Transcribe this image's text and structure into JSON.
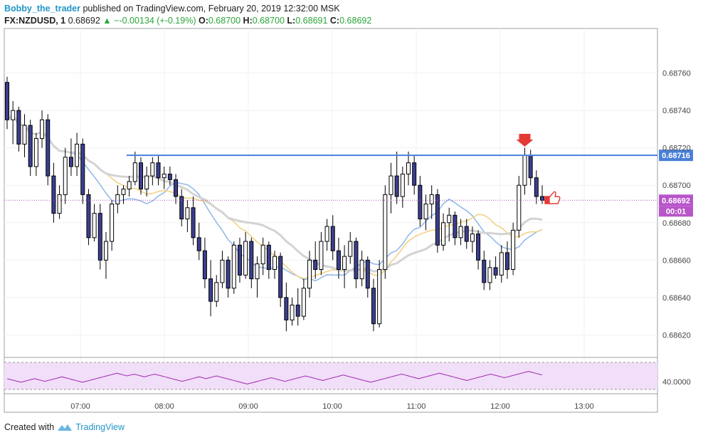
{
  "header": {
    "author": "Bobby_the_trader",
    "published_text": "published on TradingView.com, February 20, 2019 12:32:00 MSK",
    "symbol": "FX:NZDUSD, 1",
    "last_price": "0.68692",
    "change": "−-0.00134 (+-0.19%)",
    "open_label": "O:",
    "open": "0.68700",
    "high_label": "H:",
    "high": "0.68700",
    "low_label": "L:",
    "low": "0.68691",
    "close_label": "C:",
    "close": "0.68692"
  },
  "footer": {
    "created_with": "Created with",
    "brand": "TradingView"
  },
  "colors": {
    "candle_body": "#3b3f8f",
    "candle_outline": "#000000",
    "ma_fast": "#8fb7e8",
    "ma_mid": "#f3cf7d",
    "ma_slow": "#d3d3d3",
    "resistance": "#4a7fd8",
    "price_line": "#b04ac0",
    "osc_line": "#9c27b0",
    "osc_band": "#f1def8",
    "marker": "#e53935"
  },
  "chart_data": {
    "type": "candlestick",
    "y_axis_ticks": [
      "0.68760",
      "0.68740",
      "0.68720",
      "0.68700",
      "0.68680",
      "0.68660",
      "0.68640",
      "0.68620"
    ],
    "ylim": [
      0.68608,
      0.6878
    ],
    "x_axis_ticks": [
      "07:00",
      "08:00",
      "09:00",
      "10:00",
      "11:00",
      "12:00",
      "13:00"
    ],
    "resistance_level": 0.68716,
    "resistance_label": "0.68716",
    "current_price": 0.68692,
    "current_price_label": "0.68692",
    "countdown_label": "00:01",
    "oscillator": {
      "level_label": "40.0000",
      "values": [
        42,
        41,
        40,
        39,
        38,
        39,
        40,
        41,
        42,
        41,
        40,
        39,
        40,
        41,
        42,
        43,
        44,
        43,
        42,
        41,
        40,
        39,
        38,
        39,
        40,
        41,
        42,
        43,
        44,
        45,
        46,
        47,
        48,
        47,
        46,
        45,
        46,
        47,
        46,
        45,
        44,
        45,
        46,
        47,
        46,
        45,
        44,
        43,
        42,
        41,
        40,
        39,
        40,
        41,
        42,
        43,
        44,
        43,
        42,
        43,
        44,
        45,
        44,
        43,
        42,
        41,
        40,
        39,
        38,
        37,
        36,
        37,
        38,
        39,
        40,
        41,
        42,
        43,
        42,
        41,
        40,
        39,
        40,
        41,
        42,
        43,
        44,
        45,
        44,
        43,
        42,
        41,
        40,
        41,
        42,
        43,
        44,
        45,
        46,
        45,
        44,
        43,
        42,
        41,
        40,
        39,
        38,
        39,
        40,
        41,
        42,
        43,
        44,
        45,
        46,
        47,
        46,
        45,
        44,
        43,
        42,
        43,
        44,
        45,
        46,
        47,
        48,
        47,
        46,
        45,
        44,
        43,
        42,
        41,
        40,
        41,
        42,
        43,
        44,
        45,
        46,
        47,
        46,
        45,
        44,
        43,
        44,
        45,
        46,
        47,
        48,
        49,
        50,
        49,
        48,
        47,
        46
      ]
    },
    "candles": [
      [
        0.68755,
        0.68758,
        0.6873,
        0.68735
      ],
      [
        0.68735,
        0.68745,
        0.68722,
        0.6874
      ],
      [
        0.6874,
        0.68742,
        0.68718,
        0.68722
      ],
      [
        0.68722,
        0.68738,
        0.68715,
        0.68732
      ],
      [
        0.68732,
        0.68735,
        0.68705,
        0.6871
      ],
      [
        0.6871,
        0.68728,
        0.68705,
        0.68725
      ],
      [
        0.68725,
        0.6874,
        0.6872,
        0.68735
      ],
      [
        0.68735,
        0.68738,
        0.687,
        0.68705
      ],
      [
        0.68705,
        0.68712,
        0.6868,
        0.68685
      ],
      [
        0.68685,
        0.687,
        0.68682,
        0.68695
      ],
      [
        0.68695,
        0.6872,
        0.6869,
        0.68715
      ],
      [
        0.68715,
        0.68725,
        0.68705,
        0.6871
      ],
      [
        0.6871,
        0.68728,
        0.68705,
        0.68722
      ],
      [
        0.68722,
        0.68725,
        0.6869,
        0.68695
      ],
      [
        0.68695,
        0.68698,
        0.68668,
        0.68672
      ],
      [
        0.68672,
        0.6869,
        0.6867,
        0.68685
      ],
      [
        0.68685,
        0.6869,
        0.68655,
        0.6866
      ],
      [
        0.6866,
        0.68675,
        0.6865,
        0.6867
      ],
      [
        0.6867,
        0.68692,
        0.68665,
        0.6869
      ],
      [
        0.6869,
        0.687,
        0.68685,
        0.68695
      ],
      [
        0.68695,
        0.687,
        0.6869,
        0.68698
      ],
      [
        0.68698,
        0.68705,
        0.68694,
        0.68702
      ],
      [
        0.68702,
        0.68718,
        0.687,
        0.68712
      ],
      [
        0.68712,
        0.68715,
        0.68695,
        0.68698
      ],
      [
        0.68698,
        0.6871,
        0.68694,
        0.68705
      ],
      [
        0.68705,
        0.68715,
        0.687,
        0.68712
      ],
      [
        0.68712,
        0.68716,
        0.687,
        0.68704
      ],
      [
        0.68704,
        0.6871,
        0.68698,
        0.68706
      ],
      [
        0.68706,
        0.6871,
        0.687,
        0.68703
      ],
      [
        0.68703,
        0.68706,
        0.6869,
        0.68694
      ],
      [
        0.68694,
        0.68698,
        0.68678,
        0.68682
      ],
      [
        0.68682,
        0.68692,
        0.68675,
        0.68688
      ],
      [
        0.68688,
        0.68694,
        0.68668,
        0.68672
      ],
      [
        0.68672,
        0.6868,
        0.6866,
        0.68665
      ],
      [
        0.68665,
        0.68672,
        0.68645,
        0.6865
      ],
      [
        0.6865,
        0.6866,
        0.6863,
        0.68638
      ],
      [
        0.68638,
        0.68652,
        0.68635,
        0.68648
      ],
      [
        0.68648,
        0.68665,
        0.68645,
        0.6866
      ],
      [
        0.6866,
        0.68662,
        0.6864,
        0.68645
      ],
      [
        0.68645,
        0.6867,
        0.68642,
        0.68668
      ],
      [
        0.68668,
        0.68672,
        0.68648,
        0.68652
      ],
      [
        0.68652,
        0.68675,
        0.6865,
        0.6867
      ],
      [
        0.6867,
        0.68672,
        0.68645,
        0.6865
      ],
      [
        0.6865,
        0.68662,
        0.6864,
        0.68658
      ],
      [
        0.68658,
        0.68672,
        0.68652,
        0.68668
      ],
      [
        0.68668,
        0.6867,
        0.6865,
        0.68655
      ],
      [
        0.68655,
        0.68665,
        0.6865,
        0.68662
      ],
      [
        0.68662,
        0.68664,
        0.68635,
        0.6864
      ],
      [
        0.6864,
        0.68648,
        0.68622,
        0.68628
      ],
      [
        0.68628,
        0.6864,
        0.68625,
        0.68636
      ],
      [
        0.68636,
        0.68645,
        0.68625,
        0.6863
      ],
      [
        0.6863,
        0.6865,
        0.68628,
        0.68645
      ],
      [
        0.68645,
        0.68665,
        0.6864,
        0.6866
      ],
      [
        0.6866,
        0.6867,
        0.6865,
        0.68655
      ],
      [
        0.68655,
        0.68675,
        0.68652,
        0.6867
      ],
      [
        0.6867,
        0.68682,
        0.68665,
        0.68678
      ],
      [
        0.68678,
        0.68684,
        0.6866,
        0.68665
      ],
      [
        0.68665,
        0.68672,
        0.6865,
        0.68655
      ],
      [
        0.68655,
        0.68668,
        0.68645,
        0.68662
      ],
      [
        0.68662,
        0.68675,
        0.68658,
        0.6867
      ],
      [
        0.6867,
        0.68672,
        0.68645,
        0.6865
      ],
      [
        0.6865,
        0.68665,
        0.68646,
        0.6866
      ],
      [
        0.6866,
        0.68662,
        0.6864,
        0.68645
      ],
      [
        0.68645,
        0.6865,
        0.68622,
        0.68626
      ],
      [
        0.68626,
        0.6866,
        0.68624,
        0.68655
      ],
      [
        0.68655,
        0.687,
        0.6865,
        0.68695
      ],
      [
        0.68695,
        0.68712,
        0.68685,
        0.68705
      ],
      [
        0.68705,
        0.68718,
        0.6869,
        0.68694
      ],
      [
        0.68694,
        0.6871,
        0.68688,
        0.68706
      ],
      [
        0.68706,
        0.68718,
        0.687,
        0.68712
      ],
      [
        0.68712,
        0.68716,
        0.68695,
        0.687
      ],
      [
        0.687,
        0.68705,
        0.68678,
        0.68682
      ],
      [
        0.68682,
        0.68695,
        0.68676,
        0.6869
      ],
      [
        0.6869,
        0.687,
        0.68682,
        0.68695
      ],
      [
        0.68695,
        0.68698,
        0.68664,
        0.68668
      ],
      [
        0.68668,
        0.68685,
        0.68665,
        0.6868
      ],
      [
        0.6868,
        0.68688,
        0.6867,
        0.68684
      ],
      [
        0.68684,
        0.68686,
        0.68668,
        0.68672
      ],
      [
        0.68672,
        0.68682,
        0.68668,
        0.68678
      ],
      [
        0.68678,
        0.68682,
        0.68666,
        0.6867
      ],
      [
        0.6867,
        0.68678,
        0.68664,
        0.68674
      ],
      [
        0.68674,
        0.68676,
        0.68655,
        0.6866
      ],
      [
        0.6866,
        0.68665,
        0.68644,
        0.68648
      ],
      [
        0.68648,
        0.6866,
        0.68644,
        0.68656
      ],
      [
        0.68656,
        0.68662,
        0.6865,
        0.68652
      ],
      [
        0.68652,
        0.68668,
        0.68648,
        0.68664
      ],
      [
        0.68664,
        0.6867,
        0.6865,
        0.68655
      ],
      [
        0.68655,
        0.6868,
        0.68652,
        0.68676
      ],
      [
        0.68676,
        0.68705,
        0.68672,
        0.687
      ],
      [
        0.687,
        0.6872,
        0.68695,
        0.68716
      ],
      [
        0.68716,
        0.68719,
        0.687,
        0.68704
      ],
      [
        0.68704,
        0.68708,
        0.6869,
        0.68694
      ],
      [
        0.68694,
        0.687,
        0.6869,
        0.68692
      ]
    ]
  }
}
